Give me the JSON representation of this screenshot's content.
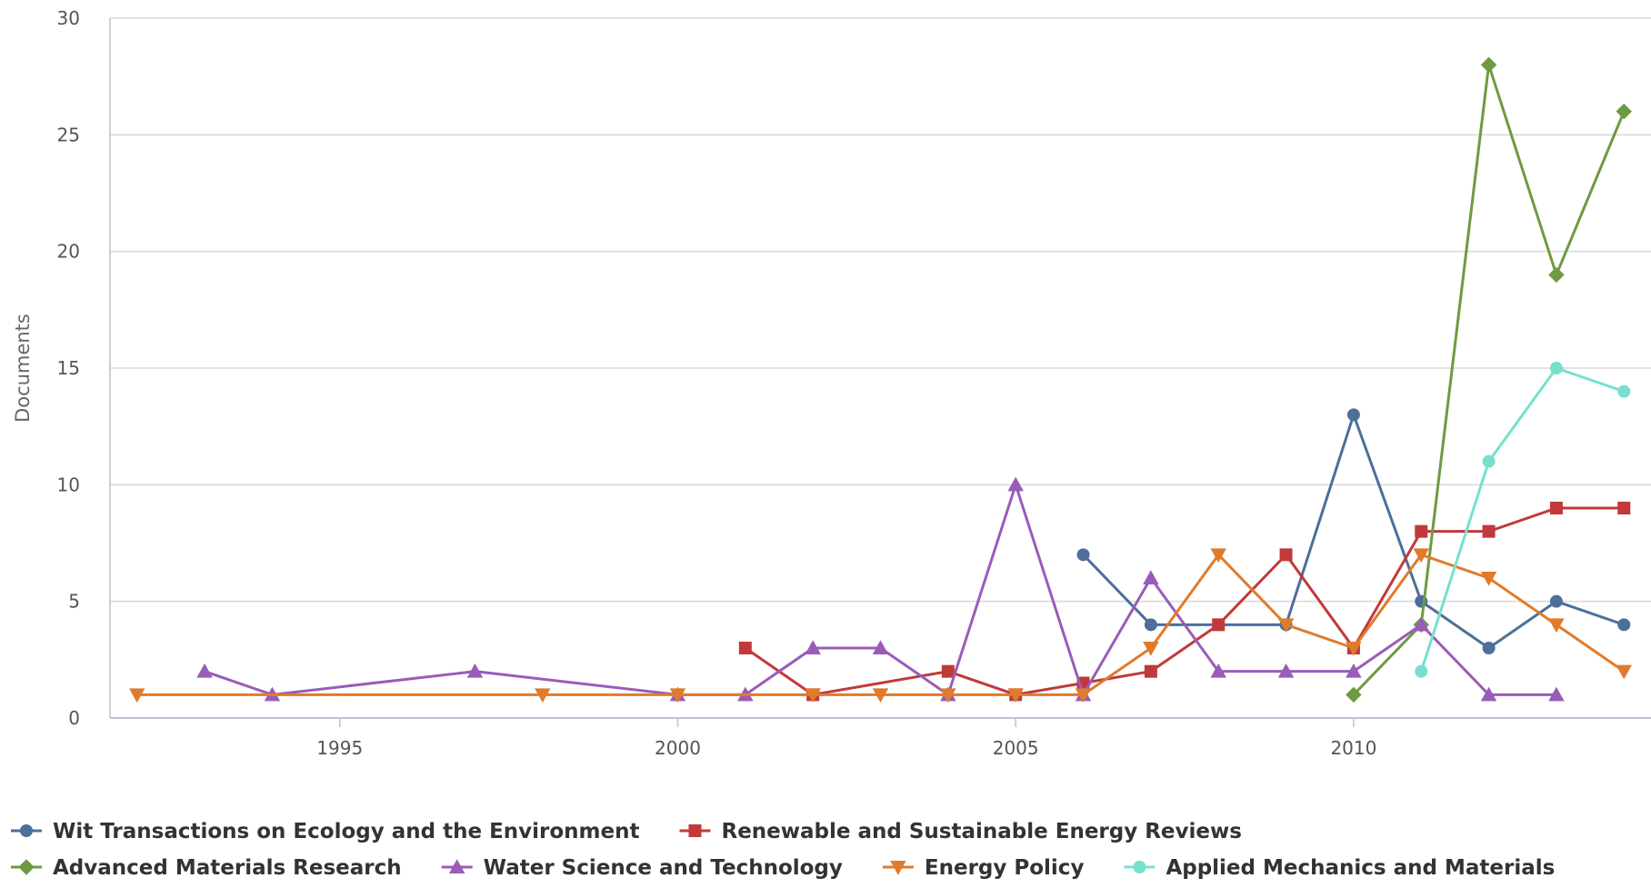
{
  "chart_data": {
    "type": "line",
    "ylabel": "Documents",
    "xlabel": "",
    "xlim": [
      1991.6,
      2014.4
    ],
    "ylim": [
      0,
      30
    ],
    "x_ticks": [
      1995,
      2000,
      2005,
      2010
    ],
    "y_ticks": [
      0,
      5,
      10,
      15,
      20,
      25,
      30
    ],
    "grid": "horizontal",
    "legend_position": "bottom-left",
    "series": [
      {
        "name": "Wit Transactions on Ecology and the Environment",
        "color": "#4d6f99",
        "marker": "circle",
        "points": [
          [
            2006,
            7
          ],
          [
            2007,
            4
          ],
          [
            2008,
            4
          ],
          [
            2009,
            4
          ],
          [
            2010,
            13
          ],
          [
            2011,
            5
          ],
          [
            2012,
            3
          ],
          [
            2013,
            5
          ],
          [
            2014,
            4
          ]
        ]
      },
      {
        "name": "Renewable and Sustainable Energy Reviews",
        "color": "#c1393a",
        "marker": "square",
        "points": [
          [
            2001,
            3
          ],
          [
            2002,
            1
          ],
          [
            2004,
            2
          ],
          [
            2005,
            1
          ],
          [
            2006,
            1.5
          ],
          [
            2007,
            2
          ],
          [
            2008,
            4
          ],
          [
            2009,
            7
          ],
          [
            2010,
            3
          ],
          [
            2011,
            8
          ],
          [
            2012,
            8
          ],
          [
            2013,
            9
          ],
          [
            2014,
            9
          ]
        ]
      },
      {
        "name": "Advanced Materials Research",
        "color": "#6e9a43",
        "marker": "diamond",
        "points": [
          [
            2010,
            1
          ],
          [
            2011,
            4
          ],
          [
            2012,
            28
          ],
          [
            2013,
            19
          ],
          [
            2014,
            26
          ]
        ]
      },
      {
        "name": "Water Science and Technology",
        "color": "#9a5cb8",
        "marker": "triangle",
        "points": [
          [
            1993,
            2
          ],
          [
            1994,
            1
          ],
          [
            1997,
            2
          ],
          [
            2000,
            1
          ],
          [
            2001,
            1
          ],
          [
            2002,
            3
          ],
          [
            2003,
            3
          ],
          [
            2004,
            1
          ],
          [
            2005,
            10
          ],
          [
            2006,
            1
          ],
          [
            2007,
            6
          ],
          [
            2008,
            2
          ],
          [
            2009,
            2
          ],
          [
            2010,
            2
          ],
          [
            2011,
            4
          ],
          [
            2012,
            1
          ],
          [
            2013,
            1
          ]
        ]
      },
      {
        "name": "Energy Policy",
        "color": "#e07b2c",
        "marker": "triangle-down",
        "points": [
          [
            1992,
            1
          ],
          [
            1998,
            1
          ],
          [
            2000,
            1
          ],
          [
            2002,
            1
          ],
          [
            2003,
            1
          ],
          [
            2004,
            1
          ],
          [
            2005,
            1
          ],
          [
            2006,
            1
          ],
          [
            2007,
            3
          ],
          [
            2008,
            7
          ],
          [
            2009,
            4
          ],
          [
            2010,
            3
          ],
          [
            2011,
            7
          ],
          [
            2012,
            6
          ],
          [
            2013,
            4
          ],
          [
            2014,
            2
          ]
        ]
      },
      {
        "name": "Applied Mechanics and Materials",
        "color": "#76e0cc",
        "marker": "circle",
        "points": [
          [
            2011,
            2
          ],
          [
            2012,
            11
          ],
          [
            2013,
            15
          ],
          [
            2014,
            14
          ]
        ]
      }
    ]
  }
}
